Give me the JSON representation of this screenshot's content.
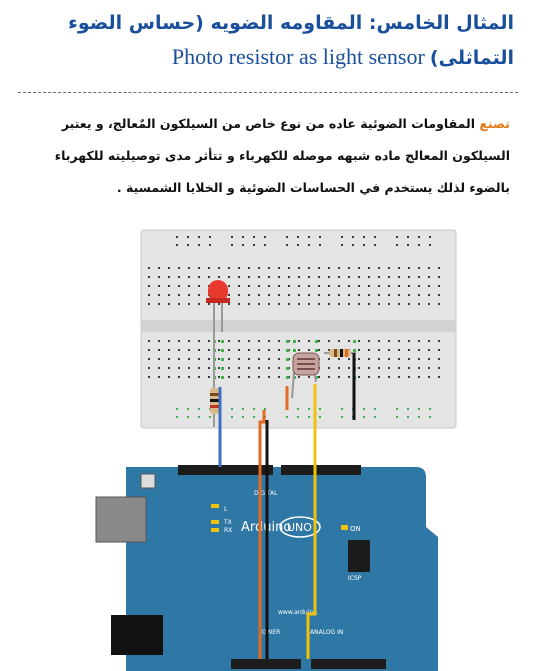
{
  "heading": {
    "arabic": "المثال الخامس: المقاومه الضويه (حساس الضوء التماثلى)",
    "english": "Photo resistor as light sensor"
  },
  "paragraph": {
    "keyword": "تصنع",
    "body": " المقاومات الضوئية عاده من نوع خاص من السيلكون المٌعالج، و يعتبر السيلكون المعالج ماده شبهه موصله للكهرباء و تتأثر مدى توصيليته للكهرباء بالضوء لذلك يستخدم في الحساسات الضوئية و الخلايا الشمسية ."
  },
  "figure": {
    "board_brand": "Arduino",
    "board_model": "UNO",
    "on_label": "ON",
    "digital_label": "DIGITAL",
    "analog_label": "ANALOG IN",
    "power_label": "POWER",
    "icsp_label": "ICSP",
    "tx_label": "TX",
    "rx_label": "RX",
    "l_label": "L",
    "url_label": "www.arduino.",
    "colors": {
      "board": "#2f78a6",
      "breadboard": "#e4e4e4",
      "led": "#e8392e",
      "wire_blue": "#3d6fc0",
      "wire_orange": "#e36a22",
      "wire_black": "#111111",
      "wire_yellow": "#f0c20a"
    }
  }
}
